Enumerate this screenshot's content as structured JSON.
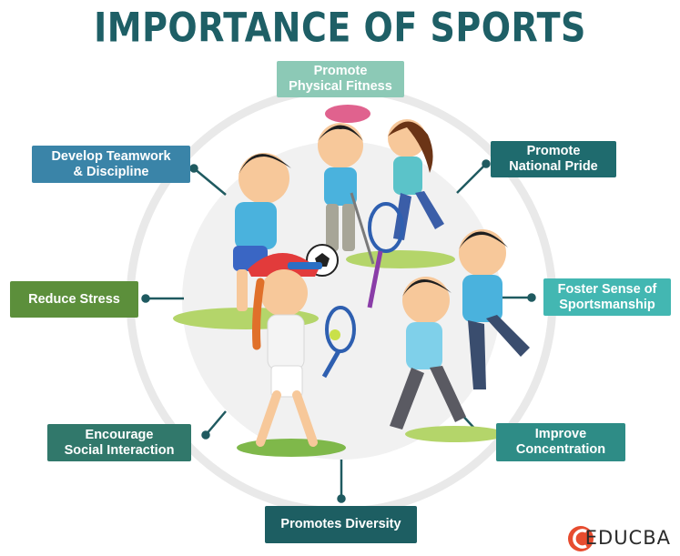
{
  "title": "IMPORTANCE OF SPORTS",
  "center_illustration": "kids-playing-sports-illustration",
  "items": [
    {
      "id": "physical-fitness",
      "text": "Promote\nPhysical Fitness",
      "color": "#8cc9b6"
    },
    {
      "id": "national-pride",
      "text": "Promote\nNational Pride",
      "color": "#1f6b6e"
    },
    {
      "id": "sportsmanship",
      "text": "Foster Sense of\nSportsmanship",
      "color": "#43b7b2"
    },
    {
      "id": "concentration",
      "text": "Improve\nConcentration",
      "color": "#2e8c86"
    },
    {
      "id": "diversity",
      "text": "Promotes Diversity",
      "color": "#1d5e62"
    },
    {
      "id": "social-interaction",
      "text": "Encourage\nSocial Interaction",
      "color": "#31786b"
    },
    {
      "id": "reduce-stress",
      "text": "Reduce Stress",
      "color": "#5c8f3b"
    },
    {
      "id": "teamwork",
      "text": "Develop Teamwork\n& Discipline",
      "color": "#3a84a8"
    }
  ],
  "colors": {
    "title": "#1e5f66",
    "ring": "#e9e9e9",
    "connector": "#1f5a60",
    "logo_red": "#e74c2f"
  },
  "logo": {
    "text": "EDUCBA",
    "icon": "educba-logo-icon"
  }
}
